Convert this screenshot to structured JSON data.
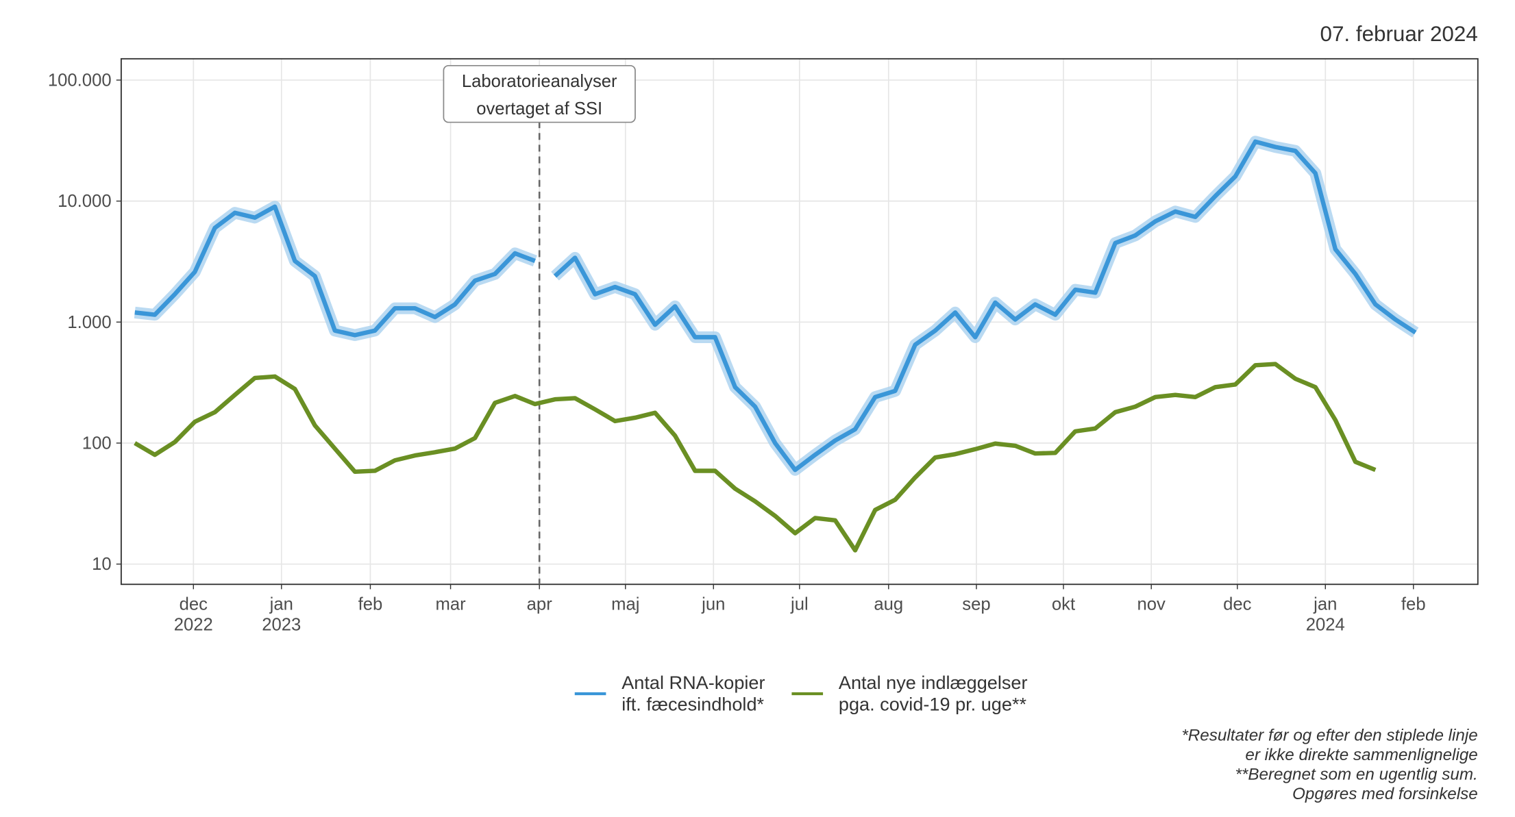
{
  "chart_data": {
    "type": "line",
    "date_label": "07. februar 2024",
    "log_y": true,
    "grid": true,
    "legend": "bottom",
    "xlim": [
      -0.68,
      67.12
    ],
    "xticks": [
      {
        "value": 2.93,
        "label": "dec\n2022"
      },
      {
        "value": 7.33,
        "label": "jan\n2023"
      },
      {
        "value": 11.77,
        "label": "feb"
      },
      {
        "value": 15.78,
        "label": "mar"
      },
      {
        "value": 20.22,
        "label": "apr"
      },
      {
        "value": 24.52,
        "label": "maj"
      },
      {
        "value": 28.92,
        "label": "jun"
      },
      {
        "value": 33.22,
        "label": "jul"
      },
      {
        "value": 37.67,
        "label": "aug"
      },
      {
        "value": 42.06,
        "label": "sep"
      },
      {
        "value": 46.41,
        "label": "okt"
      },
      {
        "value": 50.8,
        "label": "nov"
      },
      {
        "value": 55.1,
        "label": "dec"
      },
      {
        "value": 59.5,
        "label": "jan\n2024"
      },
      {
        "value": 63.9,
        "label": "feb"
      }
    ],
    "ylim": [
      6.8,
      150000
    ],
    "yticks": [
      10,
      100,
      {
        "value": 1000,
        "label": "1.000"
      },
      {
        "value": 10000,
        "label": "10.000"
      },
      {
        "value": 100000,
        "label": "100.000"
      }
    ],
    "annotation": {
      "x": 20.22,
      "text": "Laboratorieanalyser\novertaget af SSI"
    },
    "series": [
      {
        "name": "Antal RNA-kopier\nift. fæcesindhold*",
        "color": "#3a96d8",
        "band_color": "#a9d1ef",
        "x": [
          0,
          1,
          2,
          3,
          4,
          5,
          6,
          7,
          8,
          9,
          10,
          11,
          12,
          13,
          14,
          15,
          16,
          17,
          18,
          19,
          20,
          20.5,
          21,
          22,
          23,
          24,
          25,
          26,
          27,
          28,
          29,
          30,
          31,
          32,
          33,
          34,
          35,
          36,
          37,
          38,
          39,
          40,
          41,
          42,
          43,
          44,
          45,
          46,
          47,
          48,
          49,
          50,
          51,
          52,
          53,
          54,
          55,
          56,
          57,
          58,
          59,
          60,
          61,
          62,
          63,
          64
        ],
        "values": [
          1200,
          1150,
          1700,
          2600,
          6000,
          8000,
          7300,
          9000,
          3200,
          2400,
          850,
          780,
          850,
          1300,
          1300,
          1100,
          1400,
          2200,
          2500,
          3700,
          3200,
          null,
          2400,
          3400,
          1700,
          1950,
          1700,
          950,
          1350,
          750,
          750,
          290,
          200,
          100,
          60,
          80,
          105,
          130,
          240,
          270,
          650,
          850,
          1200,
          750,
          1450,
          1050,
          1400,
          1150,
          1850,
          1750,
          4500,
          5200,
          6800,
          8200,
          7400,
          11000,
          16000,
          31000,
          28000,
          26000,
          17000,
          4000,
          2500,
          1400,
          1050,
          820
        ]
      },
      {
        "name": "Antal nye indlæggelser\npga. covid-19 pr. uge**",
        "color": "#6a8f23",
        "x": [
          0,
          1,
          2,
          3,
          4,
          5,
          6,
          7,
          8,
          9,
          10,
          11,
          12,
          13,
          14,
          15,
          16,
          17,
          18,
          19,
          20,
          21,
          22,
          23,
          24,
          25,
          26,
          27,
          28,
          29,
          30,
          31,
          32,
          33,
          34,
          35,
          36,
          37,
          38,
          39,
          40,
          41,
          42,
          43,
          44,
          45,
          46,
          47,
          48,
          49,
          50,
          51,
          52,
          53,
          54,
          55,
          56,
          57,
          58,
          59,
          60,
          61,
          62
        ],
        "values": [
          100,
          80,
          102,
          150,
          180,
          250,
          345,
          355,
          280,
          140,
          90,
          58,
          59,
          72,
          79,
          84,
          90,
          110,
          215,
          245,
          210,
          230,
          235,
          190,
          152,
          162,
          178,
          115,
          59,
          59,
          42,
          33,
          25,
          18,
          24,
          23,
          13,
          28,
          34,
          52,
          76,
          81,
          89,
          99,
          95,
          82,
          83,
          125,
          132,
          180,
          200,
          240,
          250,
          240,
          290,
          305,
          440,
          450,
          340,
          290,
          155,
          70,
          60
        ]
      }
    ],
    "footnotes": [
      "*Resultater før og efter den stiplede linje",
      "er ikke direkte sammenlignelige",
      "**Beregnet som en ugentlig sum.",
      "Opgøres med forsinkelse"
    ]
  }
}
